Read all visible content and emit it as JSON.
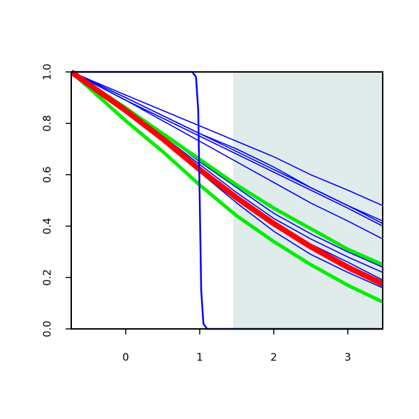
{
  "chart_data": {
    "type": "line",
    "xlim": [
      -0.736,
      3.472
    ],
    "ylim": [
      0,
      1
    ],
    "xticks": [
      0,
      1,
      2,
      3
    ],
    "yticks": [
      {
        "value": 0,
        "label": "0.0"
      },
      {
        "value": 0.2,
        "label": "0.2"
      },
      {
        "value": 0.4,
        "label": "0.4"
      },
      {
        "value": 0.6,
        "label": "0.6"
      },
      {
        "value": 0.8,
        "label": "0.8"
      },
      {
        "value": 1,
        "label": "1.0"
      }
    ],
    "highlight": {
      "xlim": [
        1.453,
        3.472
      ],
      "color": "#e0ecec"
    },
    "series": [
      {
        "color": "#0000ff",
        "line_width": 1.6,
        "x": [
          -0.736,
          0,
          0.5,
          1,
          1.5,
          2,
          2.5,
          3,
          3.472
        ],
        "values": [
          1,
          0.91,
          0.85,
          0.79,
          0.73,
          0.67,
          0.6,
          0.54,
          0.48
        ]
      },
      {
        "color": "#0000ff",
        "line_width": 1.6,
        "x": [
          -0.736,
          0,
          0.5,
          1,
          1.5,
          2,
          2.5,
          3,
          3.472
        ],
        "values": [
          1,
          0.9,
          0.83,
          0.76,
          0.7,
          0.63,
          0.55,
          0.48,
          0.42
        ]
      },
      {
        "color": "#0000ff",
        "line_width": 1.6,
        "x": [
          -0.736,
          0,
          0.5,
          1,
          1.5,
          2,
          2.5,
          3,
          3.472
        ],
        "values": [
          1,
          0.9,
          0.83,
          0.76,
          0.69,
          0.62,
          0.55,
          0.48,
          0.41
        ]
      },
      {
        "color": "#0000ff",
        "line_width": 1.6,
        "x": [
          -0.736,
          0,
          0.5,
          1,
          1.5,
          2,
          2.5,
          3,
          3.472
        ],
        "values": [
          1,
          0.89,
          0.82,
          0.75,
          0.68,
          0.61,
          0.54,
          0.47,
          0.4
        ]
      },
      {
        "color": "#0000ff",
        "line_width": 1.6,
        "x": [
          -0.736,
          0,
          0.5,
          1,
          1.5,
          2,
          2.5,
          3,
          3.472
        ],
        "values": [
          1,
          0.89,
          0.81,
          0.73,
          0.65,
          0.57,
          0.49,
          0.42,
          0.35
        ]
      },
      {
        "color": "#0000ff",
        "line_width": 1.6,
        "x": [
          -0.736,
          0,
          0.5,
          1,
          1.5,
          2,
          2.5,
          3,
          3.472
        ],
        "values": [
          1,
          0.86,
          0.76,
          0.65,
          0.55,
          0.45,
          0.37,
          0.3,
          0.24
        ]
      },
      {
        "color": "#0000ff",
        "line_width": 1.6,
        "x": [
          -0.736,
          0,
          0.5,
          1,
          1.5,
          2,
          2.5,
          3,
          3.472
        ],
        "values": [
          1,
          0.85,
          0.75,
          0.64,
          0.53,
          0.43,
          0.35,
          0.28,
          0.22
        ]
      },
      {
        "color": "#0000ff",
        "line_width": 1.6,
        "x": [
          -0.736,
          0,
          0.5,
          1,
          1.5,
          2,
          2.5,
          3,
          3.472
        ],
        "values": [
          1,
          0.85,
          0.74,
          0.63,
          0.51,
          0.41,
          0.33,
          0.26,
          0.19
        ]
      },
      {
        "color": "#0000ff",
        "line_width": 1.6,
        "x": [
          -0.736,
          0,
          0.5,
          1,
          1.5,
          2,
          2.5,
          3,
          3.472
        ],
        "values": [
          1,
          0.84,
          0.73,
          0.61,
          0.49,
          0.38,
          0.29,
          0.22,
          0.16
        ]
      },
      {
        "color": "#00ee00",
        "line_width": 5,
        "x": [
          -0.736,
          0,
          0.5,
          1,
          1.5,
          2,
          2.5,
          3,
          3.472
        ],
        "values": [
          1,
          0.86,
          0.76,
          0.66,
          0.56,
          0.47,
          0.39,
          0.31,
          0.25
        ]
      },
      {
        "color": "#00ee00",
        "line_width": 5,
        "x": [
          -0.736,
          0,
          0.5,
          1,
          1.5,
          2,
          2.5,
          3,
          3.472
        ],
        "values": [
          1,
          0.81,
          0.69,
          0.56,
          0.44,
          0.34,
          0.25,
          0.17,
          0.105
        ]
      },
      {
        "color": "#ff0000",
        "line_width": 8,
        "x": [
          -0.736,
          0,
          0.5,
          1,
          1.5,
          2,
          2.5,
          3,
          3.472
        ],
        "values": [
          1,
          0.85,
          0.74,
          0.62,
          0.51,
          0.41,
          0.32,
          0.24,
          0.175
        ]
      },
      {
        "color": "#0000ff",
        "line_width": 2.5,
        "x": [
          -0.736,
          0.9,
          0.95,
          0.98,
          1.0,
          1.02,
          1.05,
          1.1,
          3.472
        ],
        "values": [
          1,
          1,
          0.98,
          0.85,
          0.5,
          0.15,
          0.02,
          0,
          0
        ]
      }
    ]
  }
}
